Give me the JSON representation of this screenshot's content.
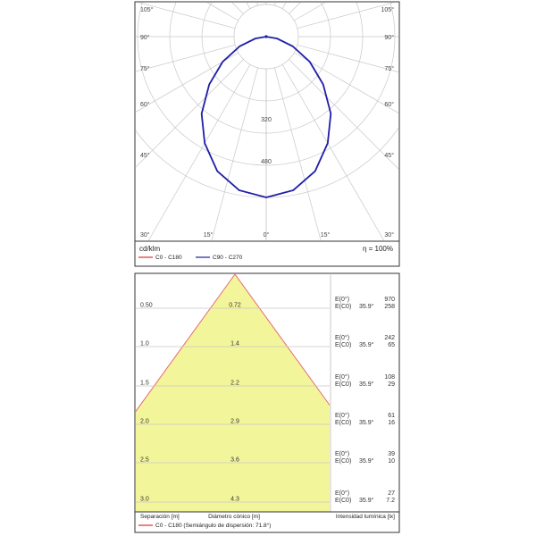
{
  "colors": {
    "c0_c180": "#e0302e",
    "c90_c270": "#1f1fa8",
    "cone_fill": "#f3f59a",
    "cone_edge": "#e46a72",
    "grid": "#c8c8c8",
    "frame": "#333333"
  },
  "chart_data": [
    {
      "type": "polar",
      "unit_label": "cd/klm",
      "efficiency_label": "η = 100%",
      "angle_ticks_left": [
        "105°",
        "90°",
        "75°",
        "60°",
        "45°",
        "30°"
      ],
      "angle_ticks_right": [
        "105°",
        "90°",
        "75°",
        "60°",
        "45°",
        "30°"
      ],
      "angle_ticks_bottom": [
        "15°",
        "0°",
        "15°"
      ],
      "radial_labels": [
        "320",
        "480"
      ],
      "radial_values": [
        320,
        480
      ],
      "r_max": 800,
      "series": [
        {
          "name": "C0 - C180",
          "color": "#e0302e",
          "angles_deg": [
            0,
            10,
            20,
            30,
            40,
            50,
            60,
            70,
            80,
            90
          ],
          "values_cdklm": [
            800,
            776,
            712,
            612,
            500,
            370,
            250,
            140,
            55,
            0
          ]
        },
        {
          "name": "C90 - C270",
          "color": "#1f1fa8",
          "angles_deg": [
            0,
            10,
            20,
            30,
            40,
            50,
            60,
            70,
            80,
            90
          ],
          "values_cdklm": [
            800,
            776,
            712,
            612,
            500,
            370,
            250,
            140,
            55,
            0
          ]
        }
      ],
      "legend": [
        "C0 - C180",
        "C90 - C270"
      ]
    },
    {
      "type": "table",
      "title_separation": "Separación [m]",
      "title_diameter": "Diámetro cónico [m]",
      "title_intensity": "Intensidad lumínica [lx]",
      "legend_line": "C0 - C180 (Semiángulo de dispersión: 71.8°)",
      "e0_label": "E(0°)",
      "ec0_label": "E(C0)",
      "angle_label": "35.9°",
      "rows": [
        {
          "separation": "0.50",
          "diameter": "0.72",
          "e0": "970",
          "ec0": "258"
        },
        {
          "separation": "1.0",
          "diameter": "1.4",
          "e0": "242",
          "ec0": "65"
        },
        {
          "separation": "1.5",
          "diameter": "2.2",
          "e0": "108",
          "ec0": "29"
        },
        {
          "separation": "2.0",
          "diameter": "2.9",
          "e0": "61",
          "ec0": "16"
        },
        {
          "separation": "2.5",
          "diameter": "3.6",
          "e0": "39",
          "ec0": "10"
        },
        {
          "separation": "3.0",
          "diameter": "4.3",
          "e0": "27",
          "ec0": "7.2"
        }
      ]
    }
  ]
}
